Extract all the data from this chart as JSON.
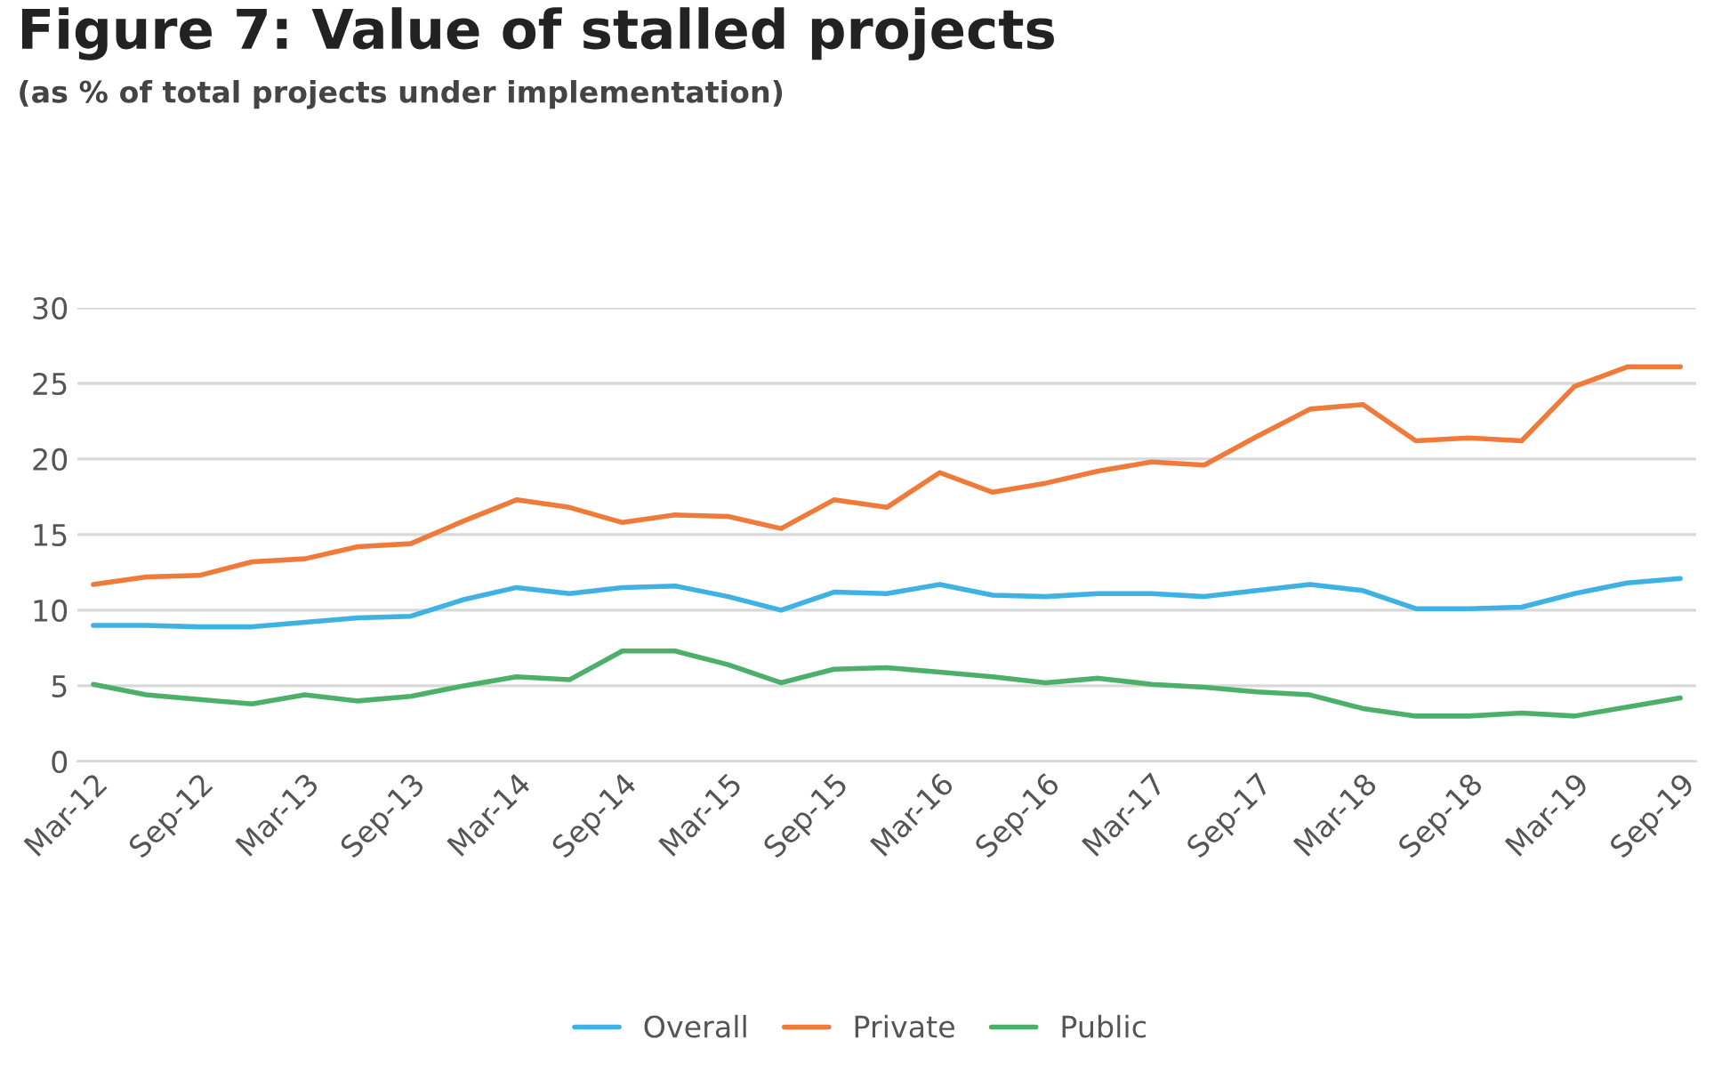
{
  "chart_data": {
    "type": "line",
    "title": "Figure 7: Value of stalled projects",
    "subtitle": "(as % of total projects under implementation)",
    "categories": [
      "Mar-12",
      null,
      "Sep-12",
      null,
      "Mar-13",
      null,
      "Sep-13",
      null,
      "Mar-14",
      null,
      "Sep-14",
      null,
      "Mar-15",
      null,
      "Sep-15",
      null,
      "Mar-16",
      null,
      "Sep-16",
      null,
      "Mar-17",
      null,
      "Sep-17",
      null,
      "Mar-18",
      null,
      "Sep-18",
      null,
      "Mar-19",
      null,
      "Sep-19"
    ],
    "series": [
      {
        "name": "Overall",
        "color": "#3fb1e3",
        "values": [
          9.0,
          9.0,
          8.9,
          8.9,
          9.2,
          9.5,
          9.6,
          10.7,
          11.5,
          11.1,
          11.5,
          11.6,
          10.9,
          10.0,
          11.2,
          11.1,
          11.7,
          11.0,
          10.9,
          11.1,
          11.1,
          10.9,
          11.3,
          11.7,
          11.3,
          10.1,
          10.1,
          10.2,
          11.1,
          11.8,
          12.1
        ]
      },
      {
        "name": "Private",
        "color": "#ef7a3a",
        "values": [
          11.7,
          12.2,
          12.3,
          13.2,
          13.4,
          14.2,
          14.4,
          15.9,
          17.3,
          16.8,
          15.8,
          16.3,
          16.2,
          15.4,
          17.3,
          16.8,
          19.1,
          17.8,
          18.4,
          19.2,
          19.8,
          19.6,
          21.5,
          23.3,
          23.6,
          21.2,
          21.4,
          21.2,
          24.8,
          26.1,
          26.1
        ]
      },
      {
        "name": "Public",
        "color": "#4caf6a",
        "values": [
          5.1,
          4.4,
          4.1,
          3.8,
          4.4,
          4.0,
          4.3,
          5.0,
          5.6,
          5.4,
          7.3,
          7.3,
          6.4,
          5.2,
          6.1,
          6.2,
          5.9,
          5.6,
          5.2,
          5.5,
          5.1,
          4.9,
          4.6,
          4.4,
          3.5,
          3.0,
          3.0,
          3.2,
          3.0,
          3.6,
          4.2
        ]
      }
    ],
    "ylim": [
      0,
      30
    ],
    "yticks": [
      0,
      5,
      10,
      15,
      20,
      25,
      30
    ],
    "grid": "y",
    "legend": "bottom",
    "marker": "none",
    "line_style": "solid"
  }
}
